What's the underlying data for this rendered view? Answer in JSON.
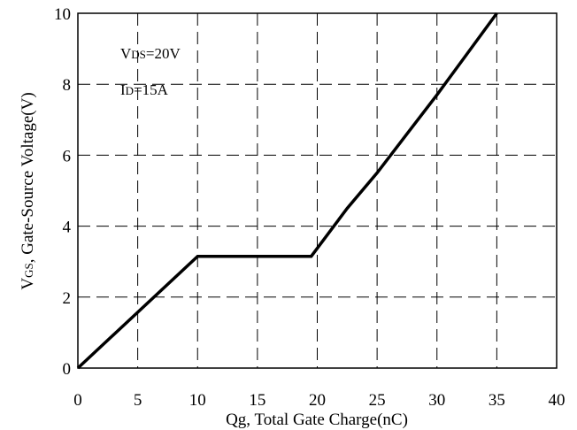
{
  "chart_data": {
    "type": "line",
    "x_ticks": [
      "0",
      "5",
      "10",
      "15",
      "20",
      "25",
      "30",
      "35",
      "40"
    ],
    "y_ticks": [
      "0",
      "2",
      "4",
      "6",
      "8",
      "10"
    ],
    "xlim": [
      0,
      40
    ],
    "ylim": [
      0,
      10
    ],
    "grid": true,
    "grid_style": "dashed",
    "xlabel": "Qg, Total Gate Charge(nC)",
    "ylabel": {
      "main": "V",
      "sub": "GS",
      "rest": ", Gate-Source Voltage(V)"
    },
    "annotations": [
      {
        "main": "V",
        "sub": "DS",
        "rest": "=20V"
      },
      {
        "main": "I",
        "sub": "D",
        "rest": "=15A"
      }
    ],
    "series": [
      {
        "color": "#000000",
        "x": [
          0,
          10,
          19.5,
          22.5,
          25,
          27.5,
          30,
          32.5,
          35
        ],
        "y": [
          0,
          3.15,
          3.15,
          4.5,
          5.5,
          6.6,
          7.7,
          8.85,
          10
        ]
      }
    ]
  }
}
